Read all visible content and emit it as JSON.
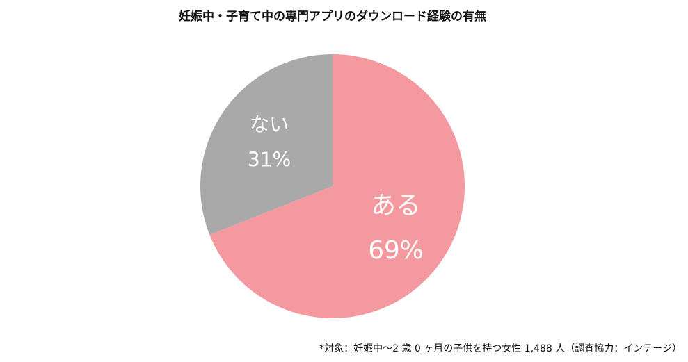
{
  "chart_data": {
    "type": "pie",
    "title": "妊娠中・子育て中の専門アプリのダウンロード経験の有無",
    "categories": [
      "ある",
      "ない"
    ],
    "values": [
      69,
      31
    ],
    "value_labels": [
      "69%",
      "31%"
    ],
    "colors": [
      "#f4999f",
      "#a9a9a9"
    ],
    "footnote": "*対象：妊娠中〜2 歳 0 ヶ月の子供を持つ女性 1,488 人（調査協力：インテージ）"
  }
}
